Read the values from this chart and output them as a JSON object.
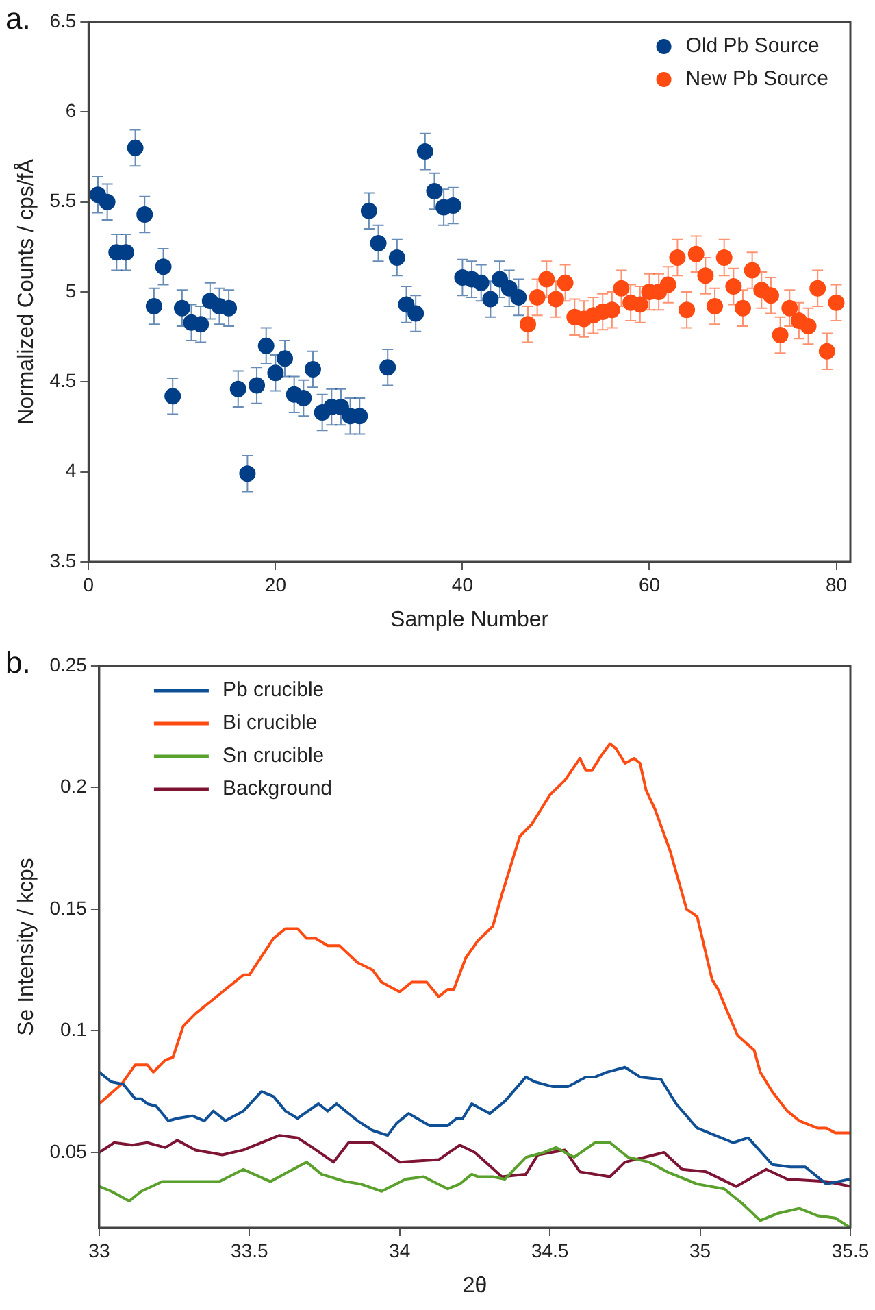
{
  "chart_data": [
    {
      "type": "scatter",
      "xlabel": "Sample Number",
      "ylabel": "Normalized Counts / cps/fÅ",
      "annotations": [
        "a."
      ],
      "xlim": [
        0,
        81.5
      ],
      "xticks": [
        0,
        20,
        40,
        60,
        80
      ],
      "ylim": [
        3.5,
        6.5
      ],
      "yticks": [
        3.5,
        4,
        4.5,
        5,
        5.5,
        6,
        6.5
      ],
      "legend": "top right",
      "marker": "circle",
      "grid": false,
      "series": [
        {
          "name": "Old Pb Source",
          "color": "#003f87",
          "x": [
            1,
            2,
            3,
            4,
            5,
            6,
            7,
            8,
            9,
            10,
            11,
            12,
            13,
            14,
            15,
            16,
            17,
            18,
            19,
            20,
            21,
            22,
            23,
            24,
            25,
            26,
            27,
            28,
            29,
            30,
            31,
            32,
            33,
            34,
            35,
            36,
            37,
            38,
            39,
            40,
            41,
            42,
            43,
            44,
            45,
            46
          ],
          "values": [
            5.54,
            5.5,
            5.22,
            5.22,
            5.8,
            5.43,
            4.92,
            5.14,
            4.42,
            4.91,
            4.83,
            4.82,
            4.95,
            4.92,
            4.91,
            4.46,
            3.99,
            4.48,
            4.7,
            4.55,
            4.63,
            4.43,
            4.41,
            4.57,
            4.33,
            4.36,
            4.36,
            4.31,
            4.31,
            5.45,
            5.27,
            4.58,
            5.19,
            4.93,
            4.88,
            5.78,
            5.56,
            5.47,
            5.48,
            5.08,
            5.07,
            5.05,
            4.96,
            5.07,
            5.02,
            4.97
          ],
          "errors": [
            0.1,
            0.1,
            0.1,
            0.1,
            0.1,
            0.1,
            0.1,
            0.1,
            0.1,
            0.1,
            0.1,
            0.1,
            0.1,
            0.1,
            0.1,
            0.1,
            0.1,
            0.1,
            0.1,
            0.1,
            0.1,
            0.1,
            0.1,
            0.1,
            0.1,
            0.1,
            0.1,
            0.1,
            0.1,
            0.1,
            0.1,
            0.1,
            0.1,
            0.1,
            0.1,
            0.1,
            0.1,
            0.1,
            0.1,
            0.1,
            0.1,
            0.1,
            0.1,
            0.1,
            0.1,
            0.1
          ]
        },
        {
          "name": "New Pb Source",
          "color": "#ff4a12",
          "x": [
            47,
            48,
            49,
            50,
            51,
            52,
            53,
            54,
            55,
            56,
            57,
            58,
            59,
            60,
            61,
            62,
            63,
            64,
            65,
            66,
            67,
            68,
            69,
            70,
            71,
            72,
            73,
            74,
            75,
            76,
            77,
            78,
            79,
            80
          ],
          "values": [
            4.82,
            4.97,
            5.07,
            4.96,
            5.05,
            4.86,
            4.85,
            4.87,
            4.89,
            4.9,
            5.02,
            4.94,
            4.93,
            5.0,
            5.0,
            5.04,
            5.19,
            4.9,
            5.21,
            5.09,
            4.92,
            5.19,
            5.03,
            4.91,
            5.12,
            5.01,
            4.98,
            4.76,
            4.91,
            4.84,
            4.81,
            5.02,
            4.67,
            4.94
          ],
          "errors": [
            0.1,
            0.1,
            0.1,
            0.1,
            0.1,
            0.1,
            0.1,
            0.1,
            0.1,
            0.1,
            0.1,
            0.1,
            0.1,
            0.1,
            0.1,
            0.1,
            0.1,
            0.1,
            0.1,
            0.1,
            0.1,
            0.1,
            0.1,
            0.1,
            0.1,
            0.1,
            0.1,
            0.1,
            0.1,
            0.1,
            0.1,
            0.1,
            0.1,
            0.1
          ]
        }
      ]
    },
    {
      "type": "line",
      "xlabel": "2θ",
      "ylabel": "Se Intensity / kcps",
      "annotations": [
        "b."
      ],
      "xlim": [
        33,
        35.5
      ],
      "xticks": [
        33,
        33.5,
        34,
        34.5,
        35,
        35.5
      ],
      "ylim": [
        0.019,
        0.25
      ],
      "yticks": [
        0.05,
        0.1,
        0.15,
        0.2,
        0.25
      ],
      "legend": "top left",
      "marker": "none",
      "line_style": "solid",
      "grid": false,
      "series": [
        {
          "name": "Pb crucible",
          "color": "#0f4f96",
          "x": [
            33,
            33.04,
            33.08,
            33.12,
            33.14,
            33.16,
            33.19,
            33.23,
            33.26,
            33.31,
            33.35,
            33.38,
            33.42,
            33.48,
            33.54,
            33.58,
            33.62,
            33.66,
            33.73,
            33.76,
            33.79,
            33.86,
            33.91,
            33.96,
            33.99,
            34.03,
            34.1,
            34.16,
            34.19,
            34.21,
            34.24,
            34.3,
            34.35,
            34.42,
            34.45,
            34.51,
            34.56,
            34.62,
            34.65,
            34.69,
            34.75,
            34.8,
            34.87,
            34.92,
            34.99,
            35.05,
            35.11,
            35.16,
            35.24,
            35.3,
            35.35,
            35.42,
            35.5
          ],
          "values": [
            0.083,
            0.079,
            0.078,
            0.072,
            0.072,
            0.07,
            0.069,
            0.063,
            0.064,
            0.065,
            0.063,
            0.067,
            0.063,
            0.067,
            0.075,
            0.073,
            0.067,
            0.064,
            0.07,
            0.067,
            0.07,
            0.063,
            0.059,
            0.057,
            0.062,
            0.066,
            0.061,
            0.061,
            0.064,
            0.064,
            0.07,
            0.066,
            0.071,
            0.081,
            0.079,
            0.077,
            0.077,
            0.081,
            0.081,
            0.083,
            0.085,
            0.081,
            0.08,
            0.07,
            0.06,
            0.057,
            0.054,
            0.056,
            0.045,
            0.044,
            0.044,
            0.037,
            0.039
          ]
        },
        {
          "name": "Bi crucible",
          "color": "#ff4a12",
          "x": [
            33,
            33.074,
            33.12,
            33.16,
            33.18,
            33.22,
            33.245,
            33.28,
            33.32,
            33.4,
            33.48,
            33.5,
            33.58,
            33.62,
            33.66,
            33.69,
            33.72,
            33.76,
            33.8,
            33.86,
            33.91,
            33.94,
            34.0,
            34.04,
            34.09,
            34.13,
            34.16,
            34.18,
            34.22,
            34.26,
            34.31,
            34.34,
            34.4,
            34.44,
            34.47,
            34.5,
            34.55,
            34.6,
            34.62,
            34.64,
            34.67,
            34.7,
            34.72,
            34.75,
            34.78,
            34.8,
            34.82,
            34.85,
            34.9,
            34.955,
            34.99,
            35.04,
            35.06,
            35.09,
            35.125,
            35.18,
            35.2,
            35.24,
            35.29,
            35.33,
            35.39,
            35.42,
            35.45,
            35.5
          ],
          "values": [
            0.07,
            0.078,
            0.086,
            0.086,
            0.083,
            0.088,
            0.089,
            0.102,
            0.107,
            0.115,
            0.123,
            0.123,
            0.138,
            0.142,
            0.142,
            0.138,
            0.138,
            0.135,
            0.135,
            0.128,
            0.125,
            0.12,
            0.116,
            0.12,
            0.12,
            0.114,
            0.117,
            0.117,
            0.13,
            0.137,
            0.143,
            0.156,
            0.18,
            0.185,
            0.191,
            0.197,
            0.203,
            0.212,
            0.207,
            0.207,
            0.213,
            0.218,
            0.216,
            0.21,
            0.212,
            0.21,
            0.199,
            0.191,
            0.174,
            0.15,
            0.147,
            0.121,
            0.117,
            0.108,
            0.098,
            0.092,
            0.083,
            0.075,
            0.067,
            0.063,
            0.06,
            0.06,
            0.058,
            0.058
          ]
        },
        {
          "name": "Sn crucible",
          "color": "#5aa02c",
          "x": [
            33,
            33.04,
            33.1,
            33.14,
            33.21,
            33.28,
            33.4,
            33.48,
            33.57,
            33.63,
            33.69,
            33.74,
            33.82,
            33.87,
            33.94,
            34.02,
            34.08,
            34.16,
            34.2,
            34.24,
            34.26,
            34.31,
            34.35,
            34.42,
            34.48,
            34.52,
            34.58,
            34.65,
            34.7,
            34.76,
            34.83,
            34.89,
            34.99,
            35.08,
            35.14,
            35.2,
            35.26,
            35.33,
            35.39,
            35.45,
            35.5
          ],
          "values": [
            0.036,
            0.034,
            0.03,
            0.034,
            0.038,
            0.038,
            0.038,
            0.043,
            0.038,
            0.042,
            0.046,
            0.041,
            0.038,
            0.037,
            0.034,
            0.039,
            0.04,
            0.035,
            0.037,
            0.041,
            0.04,
            0.04,
            0.039,
            0.048,
            0.05,
            0.052,
            0.048,
            0.054,
            0.054,
            0.048,
            0.046,
            0.042,
            0.037,
            0.035,
            0.029,
            0.022,
            0.025,
            0.027,
            0.024,
            0.023,
            0.019
          ]
        },
        {
          "name": "Background",
          "color": "#7d1434",
          "x": [
            33,
            33.05,
            33.11,
            33.16,
            33.22,
            33.26,
            33.32,
            33.41,
            33.48,
            33.6,
            33.66,
            33.71,
            33.78,
            33.83,
            33.91,
            34.0,
            34.13,
            34.2,
            34.25,
            34.34,
            34.42,
            34.46,
            34.55,
            34.6,
            34.7,
            34.75,
            34.88,
            34.94,
            35.02,
            35.12,
            35.22,
            35.29,
            35.42,
            35.5
          ],
          "values": [
            0.05,
            0.054,
            0.053,
            0.054,
            0.052,
            0.055,
            0.051,
            0.049,
            0.051,
            0.057,
            0.056,
            0.052,
            0.046,
            0.054,
            0.054,
            0.046,
            0.047,
            0.053,
            0.05,
            0.04,
            0.041,
            0.049,
            0.051,
            0.042,
            0.04,
            0.046,
            0.05,
            0.043,
            0.042,
            0.036,
            0.043,
            0.039,
            0.038,
            0.036
          ]
        }
      ]
    }
  ]
}
